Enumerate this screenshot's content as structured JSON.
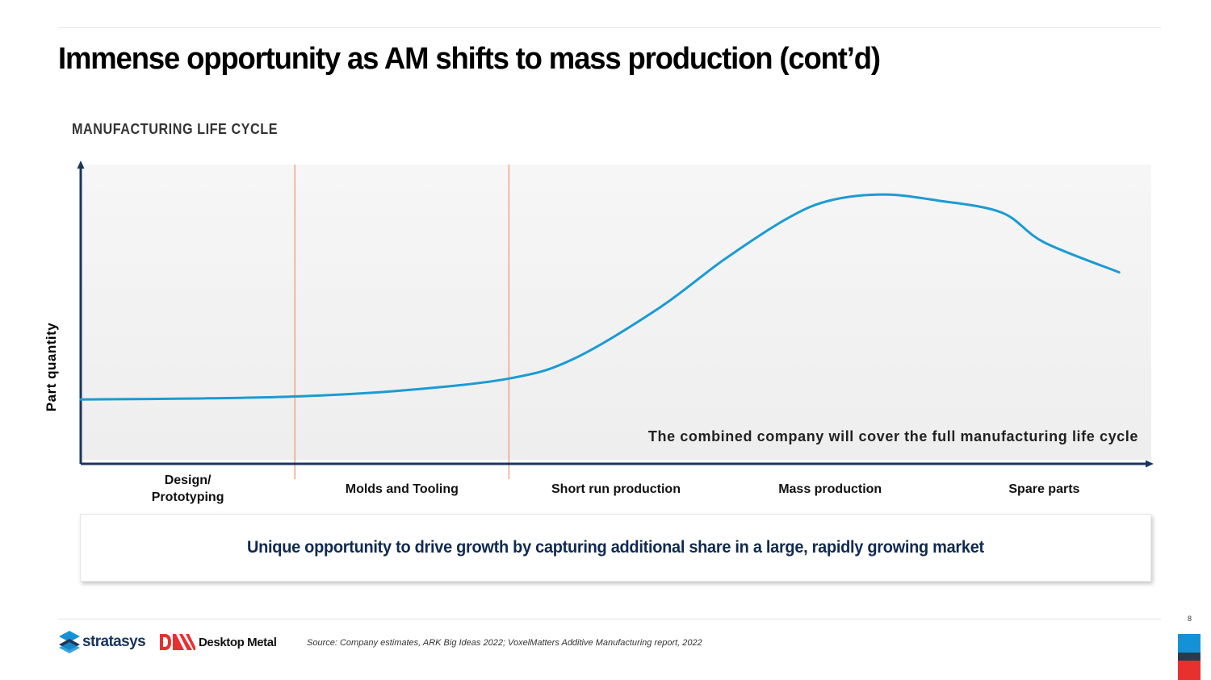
{
  "page": {
    "title": "Immense opportunity as AM shifts to mass production (cont’d)",
    "section_label": "MANUFACTURING LIFE CYCLE",
    "callout": "Unique opportunity to drive growth by capturing additional share in a large, rapidly growing market",
    "source": "Source: Company estimates, ARK Big Ideas 2022; VoxelMatters Additive Manufacturing report, 2022",
    "page_number": "8",
    "logos": {
      "stratasys": "stratasys",
      "desktop_metal": "Desktop Metal"
    }
  },
  "colors": {
    "curve": "#1b9bd3",
    "divider": "#e8956f",
    "axis": "#1a3560",
    "plot_bg": "#f3f3f3",
    "callout_text": "#102a50"
  },
  "chart_data": {
    "type": "line",
    "title": "",
    "xlabel": "",
    "ylabel": "Part quantity",
    "categories": [
      "Design/\nPrototyping",
      "Molds and Tooling",
      "Short run production",
      "Mass production",
      "Spare parts"
    ],
    "x_range": [
      0,
      5
    ],
    "ylim": [
      0,
      100
    ],
    "series": [
      {
        "name": "Part quantity over life cycle",
        "x": [
          0,
          0.5,
          1,
          1.5,
          2,
          2.3,
          2.7,
          3.0,
          3.3,
          3.5,
          3.75,
          4.0,
          4.3,
          4.5,
          4.85
        ],
        "y": [
          21.5,
          21.8,
          22.5,
          24.5,
          28.5,
          35,
          52,
          68,
          82,
          88,
          90,
          88,
          84,
          74,
          64
        ]
      }
    ],
    "dividers_at": [
      1,
      2
    ],
    "annotation": "The combined company will cover the full manufacturing life cycle",
    "grid": false
  }
}
